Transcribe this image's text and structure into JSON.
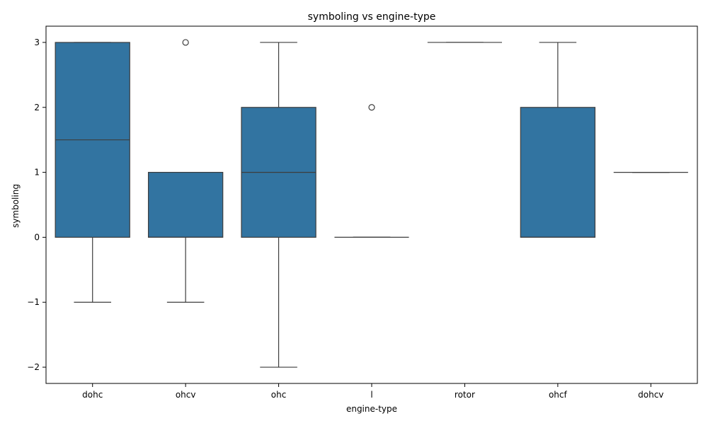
{
  "chart_data": {
    "type": "box",
    "title": "symboling vs engine-type",
    "xlabel": "engine-type",
    "ylabel": "symboling",
    "ylim": [
      -2.25,
      3.25
    ],
    "yticks": [
      3,
      2,
      1,
      0,
      -1,
      -2
    ],
    "ytick_labels": [
      "3",
      "2",
      "1",
      "0",
      "−1",
      "−2"
    ],
    "grid": false,
    "box_color": "#3274a1",
    "line_color": "#3d3d3d",
    "categories": [
      "dohc",
      "ohcv",
      "ohc",
      "l",
      "rotor",
      "ohcf",
      "dohcv"
    ],
    "boxes": [
      {
        "category": "dohc",
        "whislo": -1,
        "q1": 0,
        "med": 1.5,
        "q3": 3,
        "whishi": 3,
        "fliers": []
      },
      {
        "category": "ohcv",
        "whislo": -1,
        "q1": 0,
        "med": 0,
        "q3": 1,
        "whishi": 1,
        "fliers": [
          3
        ]
      },
      {
        "category": "ohc",
        "whislo": -2,
        "q1": 0,
        "med": 1,
        "q3": 2,
        "whishi": 3,
        "fliers": []
      },
      {
        "category": "l",
        "whislo": 0,
        "q1": 0,
        "med": 0,
        "q3": 0,
        "whishi": 0,
        "fliers": [
          2
        ]
      },
      {
        "category": "rotor",
        "whislo": 3,
        "q1": 3,
        "med": 3,
        "q3": 3,
        "whishi": 3,
        "fliers": []
      },
      {
        "category": "ohcf",
        "whislo": 0,
        "q1": 0,
        "med": 0,
        "q3": 2,
        "whishi": 3,
        "fliers": []
      },
      {
        "category": "dohcv",
        "whislo": 1,
        "q1": 1,
        "med": 1,
        "q3": 1,
        "whishi": 1,
        "fliers": []
      }
    ]
  }
}
